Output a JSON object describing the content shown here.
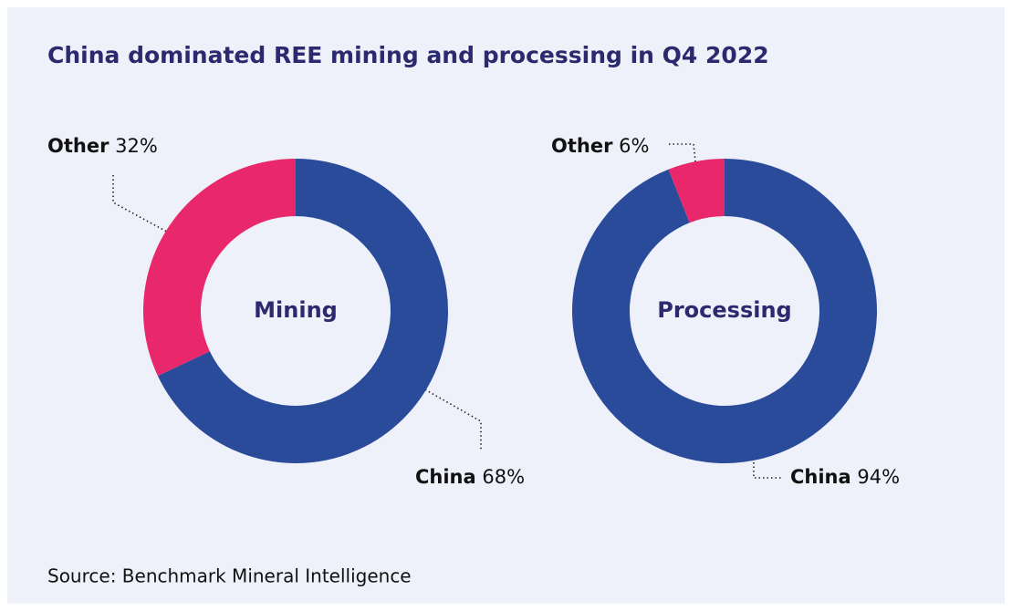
{
  "title": "China dominated REE mining and processing in Q4 2022",
  "source": "Source: Benchmark Mineral Intelligence",
  "chart_data": [
    {
      "type": "pie",
      "title": "Mining",
      "categories": [
        "China",
        "Other"
      ],
      "values": [
        68,
        32
      ],
      "value_labels": [
        "68%",
        "32%"
      ],
      "colors": [
        "#2a4a9a",
        "#e8286a"
      ],
      "donut": true
    },
    {
      "type": "pie",
      "title": "Processing",
      "categories": [
        "China",
        "Other"
      ],
      "values": [
        94,
        6
      ],
      "value_labels": [
        "94%",
        "6%"
      ],
      "colors": [
        "#2a4a9a",
        "#e8286a"
      ],
      "donut": true
    }
  ]
}
